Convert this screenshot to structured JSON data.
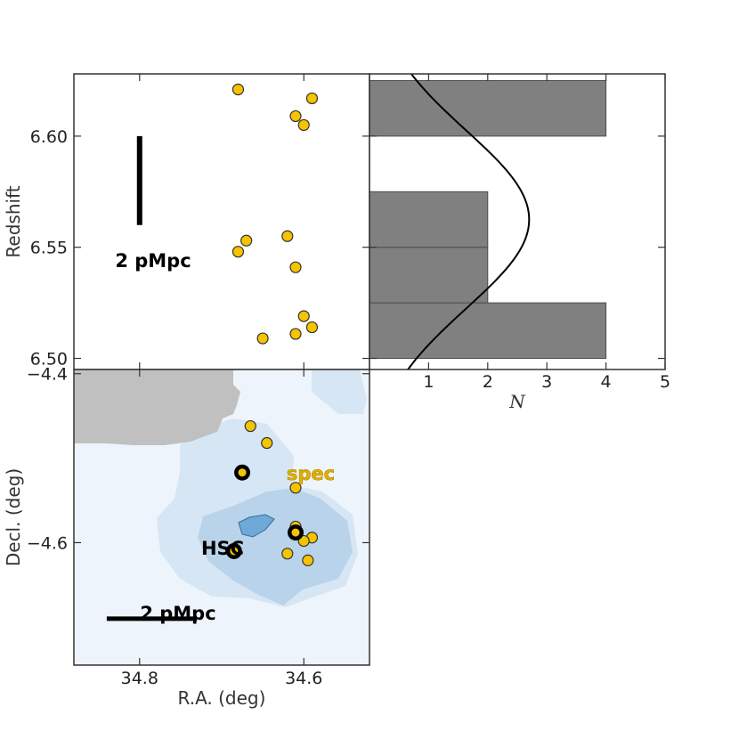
{
  "chart_data": [
    {
      "type": "scatter",
      "panel": "top-left",
      "ylabel": "Redshift",
      "xlim": [
        34.88,
        34.52
      ],
      "ylim": [
        6.495,
        6.628
      ],
      "yticks": [
        "6.50",
        "6.55",
        "6.60"
      ],
      "ytick_values": [
        6.5,
        6.55,
        6.6
      ],
      "points": [
        {
          "x": 34.68,
          "y": 6.621
        },
        {
          "x": 34.59,
          "y": 6.617
        },
        {
          "x": 34.61,
          "y": 6.609
        },
        {
          "x": 34.6,
          "y": 6.605
        },
        {
          "x": 34.62,
          "y": 6.555
        },
        {
          "x": 34.67,
          "y": 6.553
        },
        {
          "x": 34.68,
          "y": 6.548
        },
        {
          "x": 34.61,
          "y": 6.541
        },
        {
          "x": 34.6,
          "y": 6.519
        },
        {
          "x": 34.59,
          "y": 6.514
        },
        {
          "x": 34.61,
          "y": 6.511
        },
        {
          "x": 34.65,
          "y": 6.509
        }
      ],
      "scale_bar": {
        "label": "2 pMpc",
        "x": 34.8,
        "y_from": 6.56,
        "y_to": 6.6
      }
    },
    {
      "type": "bar",
      "orientation": "horizontal",
      "panel": "top-right",
      "xlabel": "N",
      "xlim": [
        0,
        5
      ],
      "xticks": [
        "1",
        "2",
        "3",
        "4",
        "5"
      ],
      "xtick_values": [
        1,
        2,
        3,
        4,
        5
      ],
      "ylim": [
        6.495,
        6.628
      ],
      "bins": [
        {
          "y0": 6.5,
          "y1": 6.525,
          "value": 4
        },
        {
          "y0": 6.525,
          "y1": 6.55,
          "value": 2
        },
        {
          "y0": 6.55,
          "y1": 6.575,
          "value": 2
        },
        {
          "y0": 6.575,
          "y1": 6.6,
          "value": 0
        },
        {
          "y0": 6.6,
          "y1": 6.625,
          "value": 4
        }
      ],
      "gaussian": {
        "mean": 6.5625,
        "sigma": 0.04,
        "peak": 2.7
      }
    },
    {
      "type": "scatter",
      "panel": "bottom-left",
      "xlabel": "R.A. (deg)",
      "ylabel": "Decl. (deg)",
      "xlim": [
        34.88,
        34.52
      ],
      "ylim": [
        -4.745,
        -4.395
      ],
      "xticks": [
        "34.8",
        "34.6"
      ],
      "xtick_values": [
        34.8,
        34.6
      ],
      "yticks": [
        "−4.6",
        "−4.4"
      ],
      "ytick_values": [
        -4.6,
        -4.4
      ],
      "spec_points": [
        {
          "x": 34.665,
          "y": -4.462
        },
        {
          "x": 34.645,
          "y": -4.482
        },
        {
          "x": 34.61,
          "y": -4.535
        },
        {
          "x": 34.61,
          "y": -4.581
        },
        {
          "x": 34.59,
          "y": -4.594
        },
        {
          "x": 34.6,
          "y": -4.598
        },
        {
          "x": 34.62,
          "y": -4.613
        },
        {
          "x": 34.595,
          "y": -4.621
        }
      ],
      "hsc_points": [
        {
          "x": 34.675,
          "y": -4.517
        },
        {
          "x": 34.61,
          "y": -4.588
        },
        {
          "x": 34.685,
          "y": -4.61
        }
      ],
      "labels": {
        "spec": "spec",
        "hsc": "HSC"
      },
      "scale_bar": {
        "label": "2 pMpc",
        "x_from": 34.84,
        "x_to": 34.73,
        "y": -4.69
      }
    }
  ],
  "colors": {
    "point_fill": "#f5c400",
    "point_edge": "#333333",
    "hsc_ring": "#000000",
    "bar_fill": "#808080",
    "density_bg": "#eef4fb",
    "density_low": "#d7e6f4",
    "density_mid": "#b9d3ea",
    "density_high": "#6fa9d6",
    "mask_gray": "#c0c0c0",
    "spec_label": "#e0b000"
  }
}
